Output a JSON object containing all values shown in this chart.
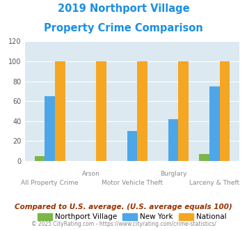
{
  "title_line1": "2019 Northport Village",
  "title_line2": "Property Crime Comparison",
  "title_color": "#1a8fe3",
  "categories": [
    "All Property Crime",
    "Arson",
    "Motor Vehicle Theft",
    "Burglary",
    "Larceny & Theft"
  ],
  "northport_values": [
    5,
    0,
    0,
    0,
    7
  ],
  "newyork_values": [
    65,
    0,
    30,
    42,
    75
  ],
  "national_values": [
    100,
    100,
    100,
    100,
    100
  ],
  "northport_color": "#7ab648",
  "newyork_color": "#4da6e8",
  "national_color": "#f5a623",
  "ylim": [
    0,
    120
  ],
  "yticks": [
    0,
    20,
    40,
    60,
    80,
    100,
    120
  ],
  "plot_bg_color": "#dce9f0",
  "legend_labels": [
    "Northport Village",
    "New York",
    "National"
  ],
  "footnote1": "Compared to U.S. average. (U.S. average equals 100)",
  "footnote1_color": "#993300",
  "footnote2": "© 2025 CityRating.com - https://www.cityrating.com/crime-statistics/",
  "footnote2_color": "#888888",
  "xlabel_labels_top": [
    "",
    "Arson",
    "",
    "Burglary",
    ""
  ],
  "xlabel_labels_bot": [
    "All Property Crime",
    "",
    "Motor Vehicle Theft",
    "",
    "Larceny & Theft"
  ]
}
